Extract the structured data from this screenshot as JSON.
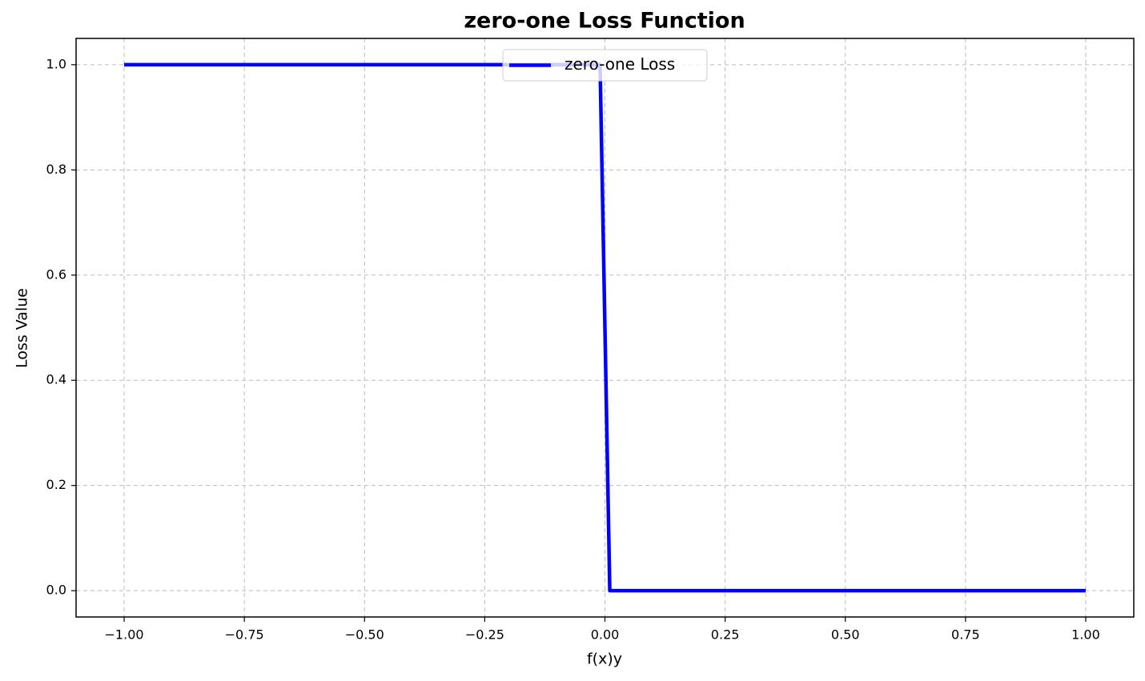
{
  "chart_data": {
    "type": "line",
    "title": "zero-one Loss Function",
    "x_label": "f(x)y",
    "y_label": "Loss Value",
    "x": [
      -1,
      -0.0101,
      0.0101,
      1
    ],
    "series": [
      {
        "name": "zero-one Loss",
        "color": "#0000ff",
        "values": [
          1,
          1,
          0,
          0
        ]
      }
    ],
    "xlim": [
      -1.1,
      1.1
    ],
    "ylim": [
      -0.05,
      1.05
    ],
    "xticks": [
      {
        "value": -1,
        "label": "−1.00"
      },
      {
        "value": -0.75,
        "label": "−0.75"
      },
      {
        "value": -0.5,
        "label": "−0.50"
      },
      {
        "value": -0.25,
        "label": "−0.25"
      },
      {
        "value": 0,
        "label": "0.00"
      },
      {
        "value": 0.25,
        "label": "0.25"
      },
      {
        "value": 0.5,
        "label": "0.50"
      },
      {
        "value": 0.75,
        "label": "0.75"
      },
      {
        "value": 1,
        "label": "1.00"
      }
    ],
    "yticks": [
      {
        "value": 0,
        "label": "0.0"
      },
      0.2,
      0.4,
      0.6,
      0.8,
      {
        "value": 1,
        "label": "1.0"
      }
    ],
    "grid": true,
    "legend": "upper center"
  }
}
